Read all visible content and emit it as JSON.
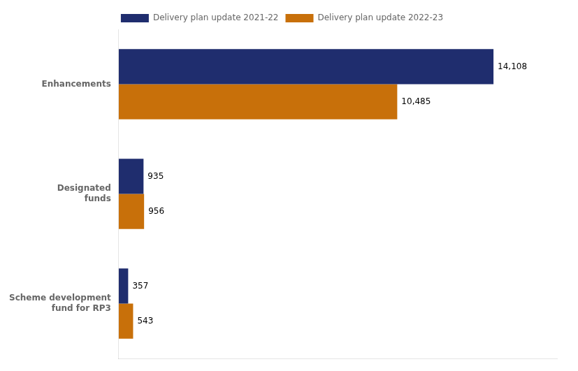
{
  "chart_data": {
    "type": "bar",
    "orientation": "horizontal",
    "categories": [
      "Enhancements",
      "Designated\nfunds",
      "Scheme development\nfund for RP3"
    ],
    "series": [
      {
        "name": "Delivery plan update 2021-22",
        "color": "#1f2d6e",
        "values": [
          14108,
          935,
          357
        ],
        "value_labels": [
          "14,108",
          "935",
          "357"
        ]
      },
      {
        "name": "Delivery plan update 2022-23",
        "color": "#c8700a",
        "values": [
          10485,
          956,
          543
        ],
        "value_labels": [
          "10,485",
          "956",
          "543"
        ]
      }
    ],
    "xlim": [
      0,
      16500
    ],
    "grid": false,
    "legend": "top",
    "data_labels": true,
    "tick_labels": "y"
  }
}
